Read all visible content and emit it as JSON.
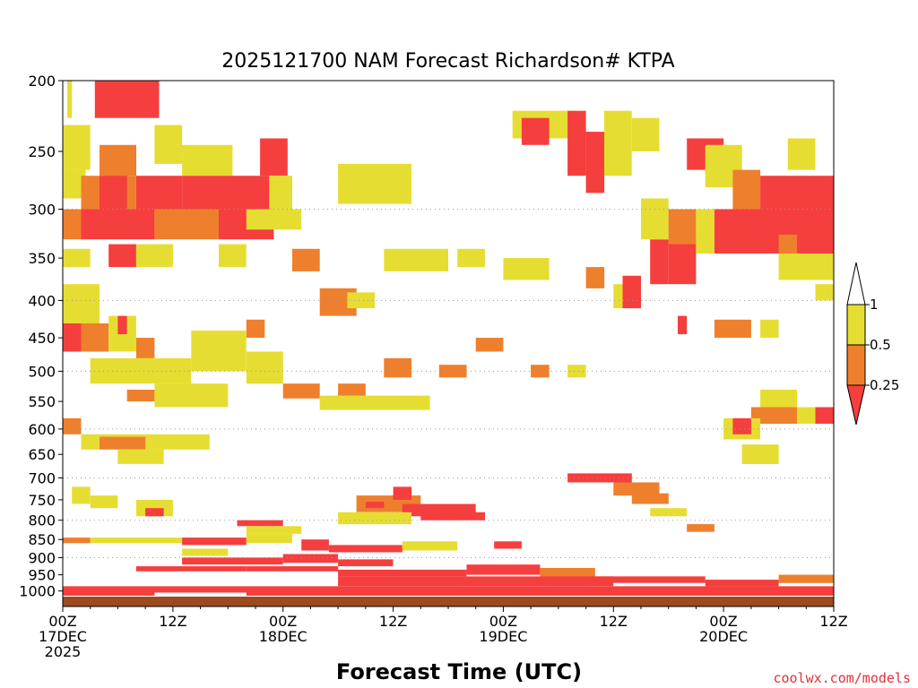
{
  "chart_data": {
    "type": "heatmap",
    "title": "2025121700 NAM Forecast Richardson# KTPA",
    "xlabel": "Forecast Time (UTC)",
    "credit": "coolwx.com/models",
    "y_ticks": [
      "200",
      "250",
      "300",
      "350",
      "400",
      "450",
      "500",
      "550",
      "600",
      "650",
      "700",
      "750",
      "800",
      "850",
      "900",
      "950",
      "1000"
    ],
    "y_scale": "pressure (hPa), decreasing upward",
    "x_ticks": [
      {
        "hour": 0,
        "lines": [
          "00Z",
          "17DEC",
          "2025"
        ]
      },
      {
        "hour": 12,
        "lines": [
          "12Z"
        ]
      },
      {
        "hour": 24,
        "lines": [
          "00Z",
          "18DEC"
        ]
      },
      {
        "hour": 36,
        "lines": [
          "12Z"
        ]
      },
      {
        "hour": 48,
        "lines": [
          "00Z",
          "19DEC"
        ]
      },
      {
        "hour": 60,
        "lines": [
          "12Z"
        ]
      },
      {
        "hour": 72,
        "lines": [
          "00Z",
          "20DEC"
        ]
      },
      {
        "hour": 84,
        "lines": [
          "12Z"
        ]
      }
    ],
    "x_range_hours": [
      0,
      84
    ],
    "y_range_hpa": [
      200,
      1050
    ],
    "grid": "dotted horizontal at 300, 400, 500, 600, 700, 800, 900 hPa",
    "legend": {
      "placement": "right",
      "labels": [
        "1",
        "0.5",
        "0.25"
      ],
      "bins": [
        {
          "range": "0.5–1",
          "color": "#e6dd32"
        },
        {
          "range": "0.25–0.5",
          "color": "#ee7f2d"
        },
        {
          "range": "<0.25",
          "color": "#f53e3e"
        }
      ]
    },
    "colors": {
      "band_yellow": "#e6dd32",
      "band_orange": "#ee7f2d",
      "band_red": "#f53e3e",
      "surface": "#9c4a1e"
    },
    "cells": [
      {
        "t0": 0.5,
        "t1": 1.0,
        "p0": 200,
        "p1": 225,
        "c": "y"
      },
      {
        "t0": 3.5,
        "t1": 10.5,
        "p0": 200,
        "p1": 225,
        "c": "r"
      },
      {
        "t0": 0,
        "t1": 3.0,
        "p0": 230,
        "p1": 265,
        "c": "y"
      },
      {
        "t0": 10,
        "t1": 13,
        "p0": 230,
        "p1": 260,
        "c": "y"
      },
      {
        "t0": 4,
        "t1": 8,
        "p0": 245,
        "p1": 270,
        "c": "o"
      },
      {
        "t0": 0,
        "t1": 2.5,
        "p0": 265,
        "p1": 290,
        "c": "y"
      },
      {
        "t0": 13,
        "t1": 18.5,
        "p0": 245,
        "p1": 270,
        "c": "y"
      },
      {
        "t0": 21.5,
        "t1": 24.5,
        "p0": 240,
        "p1": 270,
        "c": "r"
      },
      {
        "t0": 2,
        "t1": 8,
        "p0": 270,
        "p1": 300,
        "c": "o"
      },
      {
        "t0": 4,
        "t1": 7,
        "p0": 270,
        "p1": 300,
        "c": "r"
      },
      {
        "t0": 8,
        "t1": 13,
        "p0": 270,
        "p1": 300,
        "c": "r"
      },
      {
        "t0": 13,
        "t1": 22.5,
        "p0": 270,
        "p1": 300,
        "c": "r"
      },
      {
        "t0": 22.5,
        "t1": 25,
        "p0": 270,
        "p1": 300,
        "c": "y"
      },
      {
        "t0": 0,
        "t1": 2,
        "p0": 300,
        "p1": 330,
        "c": "o"
      },
      {
        "t0": 2,
        "t1": 10,
        "p0": 300,
        "p1": 330,
        "c": "r"
      },
      {
        "t0": 10,
        "t1": 17,
        "p0": 300,
        "p1": 330,
        "c": "o"
      },
      {
        "t0": 17,
        "t1": 23,
        "p0": 300,
        "p1": 330,
        "c": "r"
      },
      {
        "t0": 0,
        "t1": 3,
        "p0": 340,
        "p1": 360,
        "c": "y"
      },
      {
        "t0": 5,
        "t1": 8,
        "p0": 335,
        "p1": 360,
        "c": "r"
      },
      {
        "t0": 8,
        "t1": 12,
        "p0": 335,
        "p1": 360,
        "c": "y"
      },
      {
        "t0": 17,
        "t1": 20,
        "p0": 335,
        "p1": 360,
        "c": "y"
      },
      {
        "t0": 30,
        "t1": 38,
        "p0": 260,
        "p1": 295,
        "c": "y"
      },
      {
        "t0": 20,
        "t1": 26,
        "p0": 300,
        "p1": 320,
        "c": "y"
      },
      {
        "t0": 25,
        "t1": 28,
        "p0": 340,
        "p1": 365,
        "c": "o"
      },
      {
        "t0": 35,
        "t1": 42,
        "p0": 340,
        "p1": 365,
        "c": "y"
      },
      {
        "t0": 28,
        "t1": 32,
        "p0": 385,
        "p1": 420,
        "c": "o"
      },
      {
        "t0": 31,
        "t1": 34,
        "p0": 390,
        "p1": 410,
        "c": "y"
      },
      {
        "t0": 49,
        "t1": 56,
        "p0": 220,
        "p1": 240,
        "c": "y"
      },
      {
        "t0": 50,
        "t1": 53,
        "p0": 225,
        "p1": 245,
        "c": "r"
      },
      {
        "t0": 55,
        "t1": 57,
        "p0": 220,
        "p1": 270,
        "c": "r"
      },
      {
        "t0": 57,
        "t1": 59,
        "p0": 235,
        "p1": 285,
        "c": "r"
      },
      {
        "t0": 59,
        "t1": 62,
        "p0": 220,
        "p1": 270,
        "c": "y"
      },
      {
        "t0": 62,
        "t1": 65,
        "p0": 225,
        "p1": 250,
        "c": "y"
      },
      {
        "t0": 43,
        "t1": 46,
        "p0": 340,
        "p1": 360,
        "c": "y"
      },
      {
        "t0": 48,
        "t1": 53,
        "p0": 350,
        "p1": 375,
        "c": "y"
      },
      {
        "t0": 57,
        "t1": 59,
        "p0": 360,
        "p1": 385,
        "c": "o"
      },
      {
        "t0": 45,
        "t1": 48,
        "p0": 450,
        "p1": 470,
        "c": "o"
      },
      {
        "t0": 41,
        "t1": 44,
        "p0": 490,
        "p1": 510,
        "c": "o"
      },
      {
        "t0": 35,
        "t1": 38,
        "p0": 480,
        "p1": 510,
        "c": "o"
      },
      {
        "t0": 24,
        "t1": 28,
        "p0": 520,
        "p1": 545,
        "c": "o"
      },
      {
        "t0": 30,
        "t1": 33,
        "p0": 520,
        "p1": 545,
        "c": "o"
      },
      {
        "t0": 28,
        "t1": 40,
        "p0": 540,
        "p1": 565,
        "c": "y"
      },
      {
        "t0": 0,
        "t1": 4,
        "p0": 380,
        "p1": 430,
        "c": "y"
      },
      {
        "t0": 0,
        "t1": 2,
        "p0": 430,
        "p1": 470,
        "c": "r"
      },
      {
        "t0": 2,
        "t1": 5,
        "p0": 430,
        "p1": 470,
        "c": "o"
      },
      {
        "t0": 5,
        "t1": 8,
        "p0": 420,
        "p1": 470,
        "c": "y"
      },
      {
        "t0": 6,
        "t1": 7,
        "p0": 420,
        "p1": 445,
        "c": "r"
      },
      {
        "t0": 8,
        "t1": 10,
        "p0": 450,
        "p1": 480,
        "c": "o"
      },
      {
        "t0": 3,
        "t1": 14,
        "p0": 480,
        "p1": 520,
        "c": "y"
      },
      {
        "t0": 10,
        "t1": 18,
        "p0": 520,
        "p1": 560,
        "c": "y"
      },
      {
        "t0": 7,
        "t1": 10,
        "p0": 530,
        "p1": 550,
        "c": "o"
      },
      {
        "t0": 14,
        "t1": 20,
        "p0": 440,
        "p1": 500,
        "c": "y"
      },
      {
        "t0": 20,
        "t1": 22,
        "p0": 425,
        "p1": 450,
        "c": "o"
      },
      {
        "t0": 20,
        "t1": 24,
        "p0": 470,
        "p1": 520,
        "c": "y"
      },
      {
        "t0": 51,
        "t1": 53,
        "p0": 490,
        "p1": 510,
        "c": "o"
      },
      {
        "t0": 55,
        "t1": 57,
        "p0": 490,
        "p1": 510,
        "c": "y"
      },
      {
        "t0": 60,
        "t1": 62,
        "p0": 380,
        "p1": 410,
        "c": "y"
      },
      {
        "t0": 61,
        "t1": 63,
        "p0": 370,
        "p1": 410,
        "c": "r"
      },
      {
        "t0": 63,
        "t1": 66,
        "p0": 290,
        "p1": 330,
        "c": "y"
      },
      {
        "t0": 64,
        "t1": 66,
        "p0": 330,
        "p1": 380,
        "c": "r"
      },
      {
        "t0": 66,
        "t1": 69,
        "p0": 330,
        "p1": 380,
        "c": "r"
      },
      {
        "t0": 66,
        "t1": 69,
        "p0": 300,
        "p1": 335,
        "c": "o"
      },
      {
        "t0": 69,
        "t1": 71,
        "p0": 300,
        "p1": 345,
        "c": "y"
      },
      {
        "t0": 68,
        "t1": 72,
        "p0": 240,
        "p1": 265,
        "c": "r"
      },
      {
        "t0": 70,
        "t1": 74,
        "p0": 245,
        "p1": 280,
        "c": "y"
      },
      {
        "t0": 73,
        "t1": 76,
        "p0": 265,
        "p1": 300,
        "c": "o"
      },
      {
        "t0": 71,
        "t1": 84,
        "p0": 300,
        "p1": 345,
        "c": "r"
      },
      {
        "t0": 76,
        "t1": 84,
        "p0": 270,
        "p1": 300,
        "c": "r"
      },
      {
        "t0": 79,
        "t1": 82,
        "p0": 240,
        "p1": 265,
        "c": "y"
      },
      {
        "t0": 78,
        "t1": 80,
        "p0": 325,
        "p1": 345,
        "c": "o"
      },
      {
        "t0": 78,
        "t1": 84,
        "p0": 345,
        "p1": 375,
        "c": "y"
      },
      {
        "t0": 82,
        "t1": 84,
        "p0": 380,
        "p1": 400,
        "c": "y"
      },
      {
        "t0": 71,
        "t1": 75,
        "p0": 425,
        "p1": 450,
        "c": "o"
      },
      {
        "t0": 76,
        "t1": 78,
        "p0": 425,
        "p1": 450,
        "c": "y"
      },
      {
        "t0": 67,
        "t1": 68,
        "p0": 420,
        "p1": 445,
        "c": "r"
      },
      {
        "t0": 76,
        "t1": 80,
        "p0": 530,
        "p1": 560,
        "c": "y"
      },
      {
        "t0": 75,
        "t1": 80,
        "p0": 560,
        "p1": 590,
        "c": "o"
      },
      {
        "t0": 72,
        "t1": 76,
        "p0": 580,
        "p1": 620,
        "c": "y"
      },
      {
        "t0": 73,
        "t1": 75,
        "p0": 580,
        "p1": 610,
        "c": "r"
      },
      {
        "t0": 81,
        "t1": 84,
        "p0": 560,
        "p1": 590,
        "c": "r"
      },
      {
        "t0": 80,
        "t1": 82,
        "p0": 560,
        "p1": 590,
        "c": "y"
      },
      {
        "t0": 74,
        "t1": 78,
        "p0": 630,
        "p1": 670,
        "c": "y"
      },
      {
        "t0": 0,
        "t1": 2,
        "p0": 580,
        "p1": 610,
        "c": "o"
      },
      {
        "t0": 2,
        "t1": 16,
        "p0": 610,
        "p1": 640,
        "c": "y"
      },
      {
        "t0": 4,
        "t1": 9,
        "p0": 615,
        "p1": 640,
        "c": "o"
      },
      {
        "t0": 6,
        "t1": 11,
        "p0": 640,
        "p1": 670,
        "c": "y"
      },
      {
        "t0": 1,
        "t1": 3,
        "p0": 720,
        "p1": 760,
        "c": "y"
      },
      {
        "t0": 3,
        "t1": 6,
        "p0": 740,
        "p1": 770,
        "c": "y"
      },
      {
        "t0": 8,
        "t1": 12,
        "p0": 750,
        "p1": 790,
        "c": "y"
      },
      {
        "t0": 9,
        "t1": 11,
        "p0": 770,
        "p1": 790,
        "c": "r"
      },
      {
        "t0": 32,
        "t1": 39,
        "p0": 740,
        "p1": 780,
        "c": "o"
      },
      {
        "t0": 33,
        "t1": 35,
        "p0": 755,
        "p1": 770,
        "c": "r"
      },
      {
        "t0": 36,
        "t1": 38,
        "p0": 720,
        "p1": 750,
        "c": "r"
      },
      {
        "t0": 37,
        "t1": 45,
        "p0": 760,
        "p1": 790,
        "c": "r"
      },
      {
        "t0": 39,
        "t1": 46,
        "p0": 780,
        "p1": 800,
        "c": "r"
      },
      {
        "t0": 30,
        "t1": 38,
        "p0": 780,
        "p1": 810,
        "c": "y"
      },
      {
        "t0": 19,
        "t1": 24,
        "p0": 800,
        "p1": 815,
        "c": "r"
      },
      {
        "t0": 20,
        "t1": 26,
        "p0": 815,
        "p1": 835,
        "c": "y"
      },
      {
        "t0": 0,
        "t1": 3,
        "p0": 845,
        "p1": 860,
        "c": "o"
      },
      {
        "t0": 3,
        "t1": 13,
        "p0": 845,
        "p1": 860,
        "c": "y"
      },
      {
        "t0": 13,
        "t1": 20,
        "p0": 845,
        "p1": 865,
        "c": "r"
      },
      {
        "t0": 20,
        "t1": 25,
        "p0": 835,
        "p1": 860,
        "c": "y"
      },
      {
        "t0": 26,
        "t1": 29,
        "p0": 850,
        "p1": 880,
        "c": "r"
      },
      {
        "t0": 29,
        "t1": 37,
        "p0": 865,
        "p1": 885,
        "c": "r"
      },
      {
        "t0": 37,
        "t1": 43,
        "p0": 855,
        "p1": 880,
        "c": "y"
      },
      {
        "t0": 47,
        "t1": 50,
        "p0": 855,
        "p1": 875,
        "c": "r"
      },
      {
        "t0": 13,
        "t1": 18,
        "p0": 875,
        "p1": 895,
        "c": "y"
      },
      {
        "t0": 13,
        "t1": 24,
        "p0": 900,
        "p1": 920,
        "c": "r"
      },
      {
        "t0": 24,
        "t1": 30,
        "p0": 890,
        "p1": 915,
        "c": "r"
      },
      {
        "t0": 30,
        "t1": 36,
        "p0": 905,
        "p1": 925,
        "c": "r"
      },
      {
        "t0": 8,
        "t1": 20,
        "p0": 925,
        "p1": 940,
        "c": "r"
      },
      {
        "t0": 20,
        "t1": 30,
        "p0": 925,
        "p1": 940,
        "c": "r"
      },
      {
        "t0": 30,
        "t1": 44,
        "p0": 935,
        "p1": 955,
        "c": "r"
      },
      {
        "t0": 44,
        "t1": 52,
        "p0": 920,
        "p1": 950,
        "c": "r"
      },
      {
        "t0": 52,
        "t1": 58,
        "p0": 930,
        "p1": 960,
        "c": "o"
      },
      {
        "t0": 58,
        "t1": 70,
        "p0": 955,
        "p1": 975,
        "c": "r"
      },
      {
        "t0": 70,
        "t1": 78,
        "p0": 965,
        "p1": 985,
        "c": "r"
      },
      {
        "t0": 78,
        "t1": 84,
        "p0": 950,
        "p1": 975,
        "c": "o"
      },
      {
        "t0": 30,
        "t1": 60,
        "p0": 955,
        "p1": 985,
        "c": "r"
      },
      {
        "t0": 0,
        "t1": 84,
        "p0": 985,
        "p1": 1005,
        "c": "r"
      },
      {
        "t0": 0,
        "t1": 10,
        "p0": 1005,
        "p1": 1015,
        "c": "r"
      },
      {
        "t0": 20,
        "t1": 84,
        "p0": 1000,
        "p1": 1015,
        "c": "r"
      },
      {
        "t0": 55,
        "t1": 62,
        "p0": 690,
        "p1": 710,
        "c": "r"
      },
      {
        "t0": 60,
        "t1": 65,
        "p0": 710,
        "p1": 740,
        "c": "o"
      },
      {
        "t0": 62,
        "t1": 66,
        "p0": 735,
        "p1": 760,
        "c": "o"
      },
      {
        "t0": 64,
        "t1": 68,
        "p0": 770,
        "p1": 790,
        "c": "y"
      },
      {
        "t0": 68,
        "t1": 71,
        "p0": 810,
        "p1": 830,
        "c": "o"
      }
    ]
  }
}
